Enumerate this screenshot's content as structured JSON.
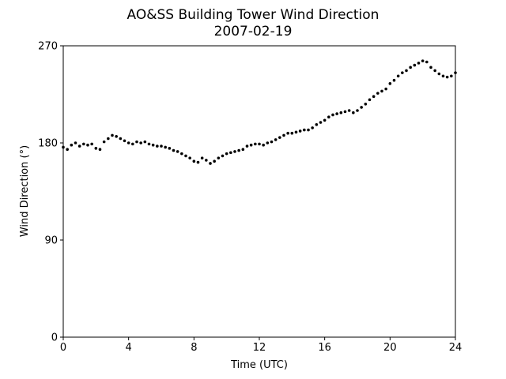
{
  "chart_data": {
    "type": "scatter",
    "title": "AO&SS Building Tower Wind Direction",
    "subtitle": "2007-02-19",
    "x_label": "Time (UTC)",
    "y_label": "Wind Direction (°)",
    "color": "#000000",
    "xlim": [
      0,
      24
    ],
    "xticks": [
      0,
      4,
      8,
      12,
      16,
      20,
      24
    ],
    "ylim": [
      0,
      270
    ],
    "yticks": [
      0,
      90,
      180,
      270
    ],
    "x": [
      0,
      0.25,
      0.5,
      0.75,
      1,
      1.25,
      1.5,
      1.75,
      2,
      2.25,
      2.5,
      2.75,
      3,
      3.25,
      3.5,
      3.75,
      4,
      4.25,
      4.5,
      4.75,
      5,
      5.25,
      5.5,
      5.75,
      6,
      6.25,
      6.5,
      6.75,
      7,
      7.25,
      7.5,
      7.75,
      8,
      8.25,
      8.5,
      8.75,
      9,
      9.25,
      9.5,
      9.75,
      10,
      10.25,
      10.5,
      10.75,
      11,
      11.25,
      11.5,
      11.75,
      12,
      12.25,
      12.5,
      12.75,
      13,
      13.25,
      13.5,
      13.75,
      14,
      14.25,
      14.5,
      14.75,
      15,
      15.25,
      15.5,
      15.75,
      16,
      16.25,
      16.5,
      16.75,
      17,
      17.25,
      17.5,
      17.75,
      18,
      18.25,
      18.5,
      18.75,
      19,
      19.25,
      19.5,
      19.75,
      20,
      20.25,
      20.5,
      20.75,
      21,
      21.25,
      21.5,
      21.75,
      22,
      22.25,
      22.5,
      22.75,
      23,
      23.25,
      23.5,
      23.75,
      24
    ],
    "values": [
      176,
      174,
      178,
      180,
      177,
      179,
      178,
      179,
      175,
      174,
      181,
      184,
      187,
      186,
      184,
      182,
      180,
      179,
      181,
      180,
      181,
      179,
      178,
      177,
      177,
      176,
      175,
      173,
      172,
      170,
      168,
      166,
      163,
      162,
      166,
      164,
      161,
      163,
      166,
      168,
      170,
      171,
      172,
      173,
      174,
      177,
      178,
      179,
      179,
      178,
      180,
      181,
      183,
      185,
      187,
      189,
      189,
      190,
      191,
      192,
      192,
      194,
      197,
      199,
      201,
      204,
      206,
      207,
      208,
      209,
      210,
      208,
      210,
      213,
      216,
      220,
      223,
      226,
      228,
      230,
      235,
      238,
      242,
      245,
      247,
      250,
      252,
      254,
      256,
      255,
      250,
      247,
      244,
      242,
      241,
      242,
      245
    ]
  }
}
